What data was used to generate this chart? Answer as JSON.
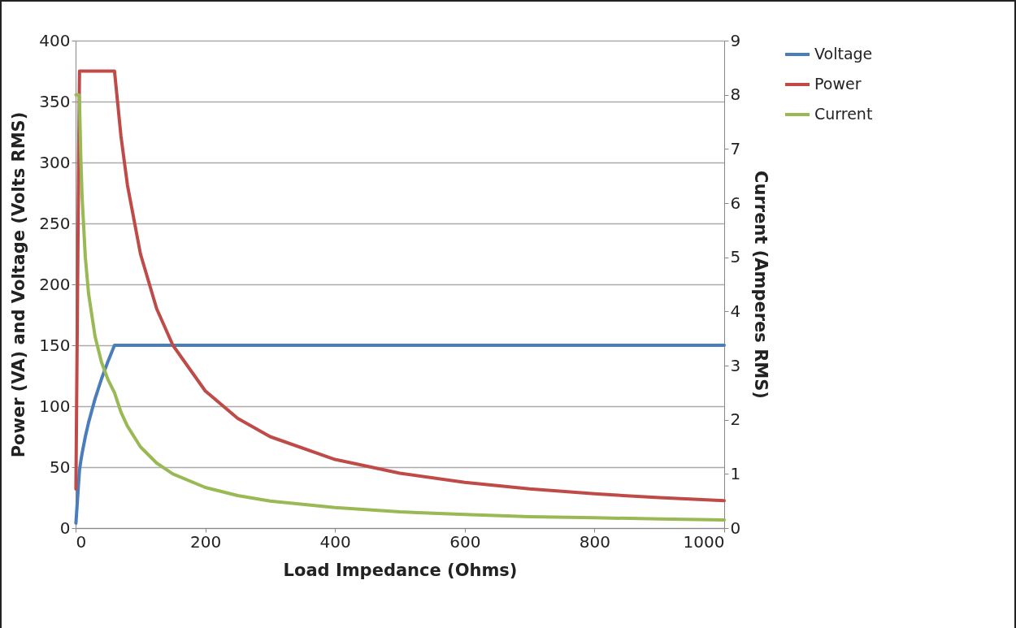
{
  "chart_data": {
    "type": "line",
    "xlabel": "Load Impedance (Ohms)",
    "ylabel": "Power (VA) and Voltage (Volts RMS)",
    "y2label": "Current (Amperes RMS)",
    "x": [
      0.5,
      1,
      2,
      3,
      4,
      5,
      6,
      8,
      10,
      15,
      20,
      30,
      40,
      50,
      60,
      70,
      80,
      100,
      125,
      150,
      200,
      250,
      300,
      400,
      500,
      600,
      700,
      800,
      900,
      1000
    ],
    "series": [
      {
        "name": "Voltage",
        "color": "#4a7ebb",
        "values": [
          4,
          8,
          16,
          24,
          32,
          40,
          47.4,
          54.8,
          61.2,
          75,
          86.6,
          106.1,
          122.5,
          136.9,
          150,
          150,
          150,
          150,
          150,
          150,
          150,
          150,
          150,
          150,
          150,
          150,
          150,
          150,
          150,
          150
        ]
      },
      {
        "name": "Power",
        "color": "#be4b48",
        "values": [
          32,
          64,
          128,
          192,
          256,
          320,
          375,
          375,
          375,
          375,
          375,
          375,
          375,
          375,
          375,
          321.4,
          281.3,
          225,
          180,
          150,
          112.5,
          90,
          75,
          56.3,
          45,
          37.5,
          32.1,
          28.1,
          25,
          22.5
        ]
      },
      {
        "name": "Current",
        "color": "#98b954",
        "axis": "y2",
        "values": [
          8,
          8,
          8,
          8,
          8,
          8,
          7.91,
          6.85,
          6.12,
          5,
          4.33,
          3.54,
          3.06,
          2.74,
          2.5,
          2.14,
          1.88,
          1.5,
          1.2,
          1,
          0.75,
          0.6,
          0.5,
          0.38,
          0.3,
          0.25,
          0.21,
          0.19,
          0.17,
          0.15
        ]
      }
    ],
    "xlim": [
      0,
      1000
    ],
    "xticks": [
      0,
      200,
      400,
      600,
      800,
      1000
    ],
    "ylim": [
      0,
      400
    ],
    "yticks": [
      0,
      50,
      100,
      150,
      200,
      250,
      300,
      350,
      400
    ],
    "y2lim": [
      0,
      9
    ],
    "y2ticks": [
      0,
      1,
      2,
      3,
      4,
      5,
      6,
      7,
      8,
      9
    ],
    "grid": "y",
    "legend": "right"
  }
}
